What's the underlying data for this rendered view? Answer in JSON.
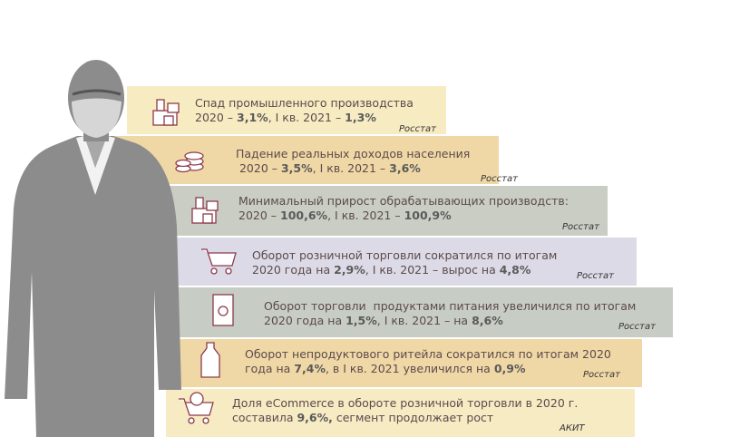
{
  "items": [
    {
      "lines": [
        [
          "Спад промышленного производства"
        ],
        [
          "2020 – ",
          {
            "text": "3,1%",
            "bold": true
          },
          ", I кв. 2021 – ",
          {
            "text": "1,3%",
            "bold": true
          }
        ]
      ],
      "source": "Росстат"
    },
    {
      "lines": [
        [
          "Падение реальных доходов населения"
        ],
        [
          " 2020 – ",
          {
            "text": "3,5%",
            "bold": true
          },
          ", I кв. 2021 – ",
          {
            "text": "3,6%",
            "bold": true
          }
        ]
      ],
      "source": "Росстат"
    },
    {
      "lines": [
        [
          "Минимальный прирост обрабатывающих производств:"
        ],
        [
          "2020 – ",
          {
            "text": "100,6%",
            "bold": true
          },
          ", I кв. 2021 – ",
          {
            "text": "100,9%",
            "bold": true
          }
        ]
      ],
      "source": "Росстат"
    },
    {
      "lines": [
        [
          "Оборот розничной торговли сократился по итогам"
        ],
        [
          "2020 года на ",
          {
            "text": "2,9%",
            "bold": true
          },
          ", I кв. 2021 – вырос на ",
          {
            "text": "4,8%",
            "bold": true
          }
        ]
      ],
      "source": "Росстат"
    },
    {
      "lines": [
        [
          "Оборот торговли  продуктами питания увеличился по итогам"
        ],
        [
          "2020 года на ",
          {
            "text": "1,5%",
            "bold": true
          },
          ", I кв. 2021 – на ",
          {
            "text": "8,6%",
            "bold": true
          }
        ]
      ],
      "source": "Росстат"
    },
    {
      "lines": [
        [
          "Оборот непродуктового ритейла сократился по итогам 2020"
        ],
        [
          "года на ",
          {
            "text": "7,4%",
            "bold": true
          },
          ", в I кв. 2021 увеличился на ",
          {
            "text": "0,9%",
            "bold": true
          }
        ]
      ],
      "source": "Росстат"
    },
    {
      "lines": [
        [
          "Доля eCommerce в обороте розничной торговли в 2020 г."
        ],
        [
          "составила ",
          {
            "text": "9,6%,",
            "bold": true
          },
          " сегмент продолжает рост"
        ]
      ],
      "source": "АКИТ"
    }
  ]
}
